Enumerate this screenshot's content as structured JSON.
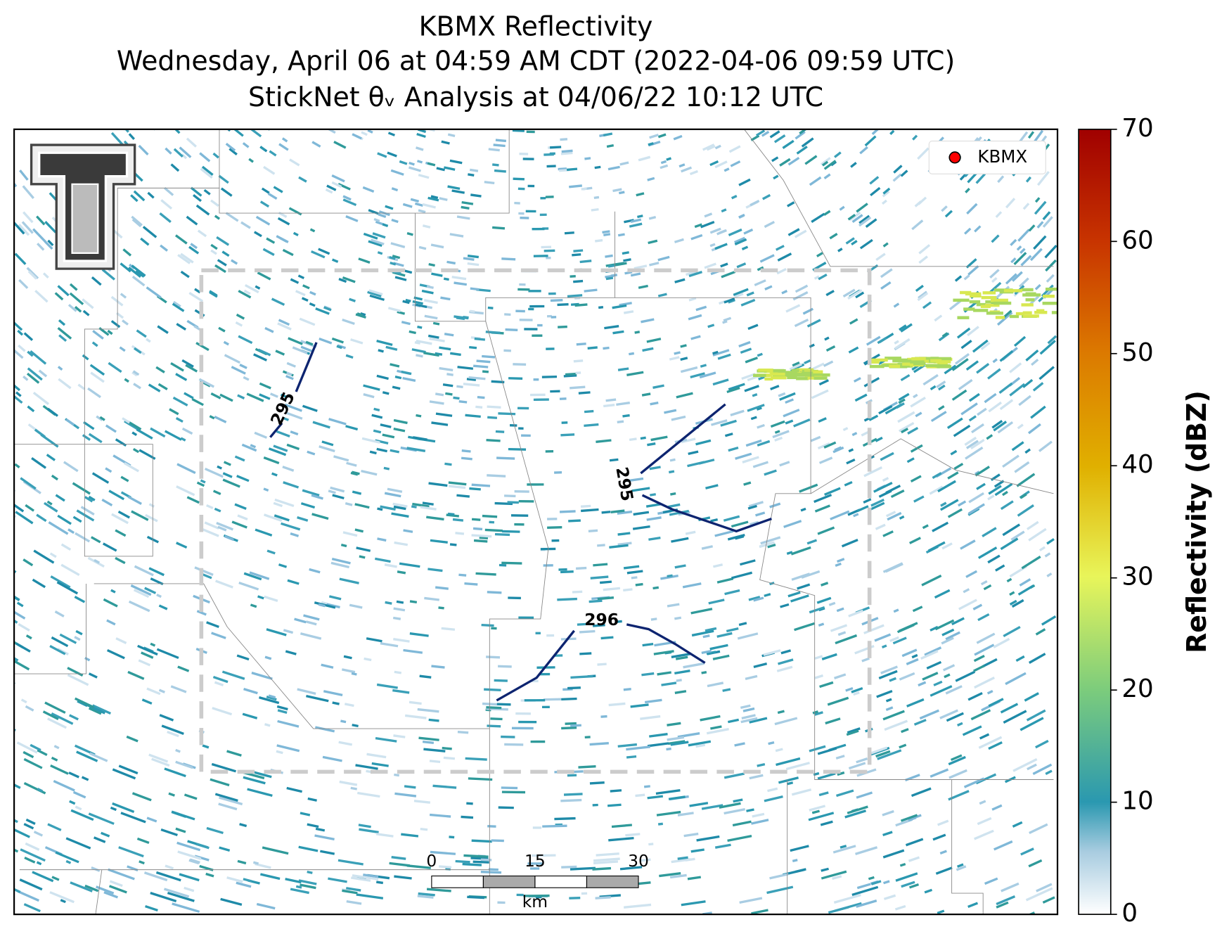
{
  "map": {
    "title": [
      "KBMX Reflectivity",
      "Wednesday, April 06 at 04:59 AM CDT (2022-04-06 09:59 UTC)",
      "StickNet θᵥ Analysis at 04/06/22 10:12 UTC"
    ],
    "legend": {
      "label": "KBMX",
      "color": "#ff0000"
    },
    "contours": [
      295,
      295,
      296
    ],
    "contour_color": "#0d2470",
    "scale_bar": {
      "ticks": [
        "0",
        "15",
        "30"
      ],
      "unit": "km"
    },
    "colorbar": {
      "label": "Reflectivity (dBZ)",
      "lim": [
        0,
        70
      ],
      "ticks": [
        0,
        10,
        20,
        30,
        40,
        50,
        60,
        70
      ]
    }
  }
}
